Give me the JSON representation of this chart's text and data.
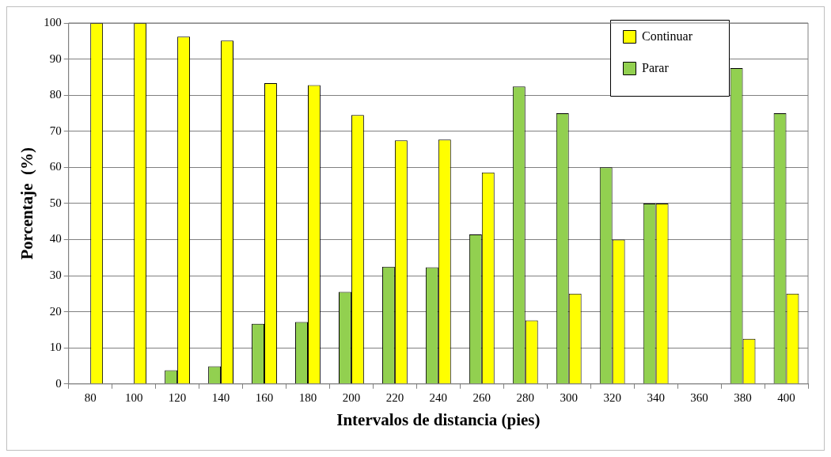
{
  "chart_data": {
    "type": "bar",
    "xlabel": "Intervalos de distancia (pies)",
    "ylabel": "Porcentaje  (%)",
    "categories": [
      "80",
      "100",
      "120",
      "140",
      "160",
      "180",
      "200",
      "220",
      "240",
      "260",
      "280",
      "300",
      "320",
      "340",
      "360",
      "380",
      "400"
    ],
    "series": [
      {
        "name": "Continuar",
        "color": "#ffff00",
        "values": [
          100,
          100,
          96.2,
          95.1,
          83.3,
          82.8,
          74.5,
          67.5,
          67.7,
          58.6,
          17.6,
          25,
          40,
          50,
          null,
          12.5,
          25
        ]
      },
      {
        "name": "Parar",
        "color": "#92d050",
        "values": [
          null,
          null,
          3.8,
          4.9,
          16.7,
          17.2,
          25.5,
          32.5,
          32.3,
          41.4,
          82.4,
          75,
          60,
          50,
          null,
          87.5,
          75
        ]
      }
    ],
    "ylim": [
      0,
      100
    ],
    "yticks": [
      0,
      10,
      20,
      30,
      40,
      50,
      60,
      70,
      80,
      90,
      100
    ],
    "grid": "y",
    "legend": "top right"
  }
}
